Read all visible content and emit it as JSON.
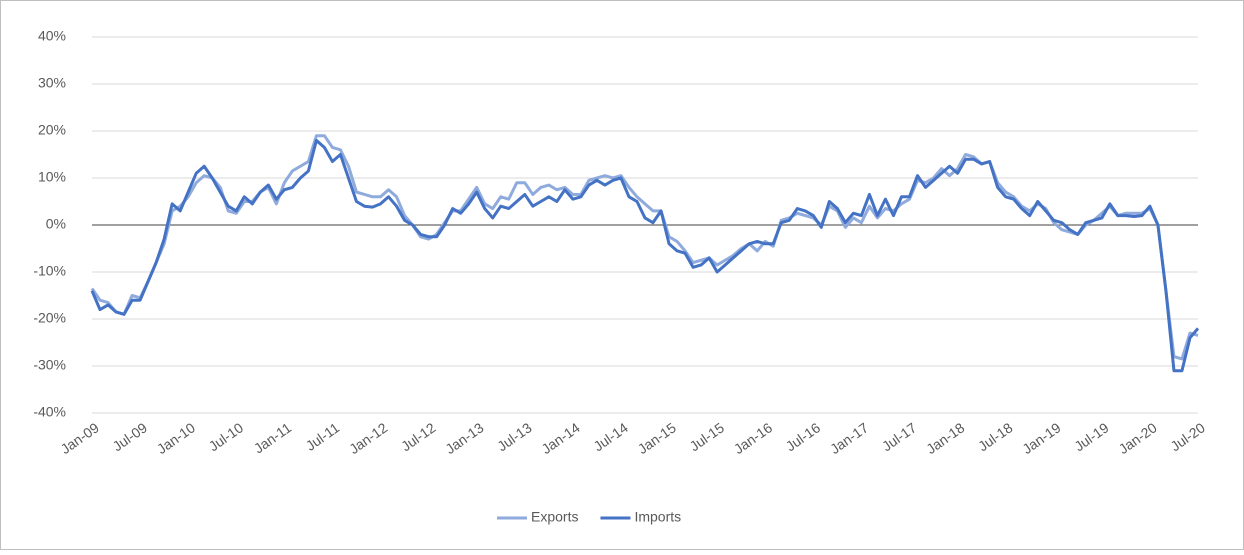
{
  "chart_data": {
    "type": "line",
    "categories": [
      "Jan-09",
      null,
      null,
      null,
      null,
      null,
      "Jul-09",
      null,
      null,
      null,
      null,
      null,
      "Jan-10",
      null,
      null,
      null,
      null,
      null,
      "Jul-10",
      null,
      null,
      null,
      null,
      null,
      "Jan-11",
      null,
      null,
      null,
      null,
      null,
      "Jul-11",
      null,
      null,
      null,
      null,
      null,
      "Jan-12",
      null,
      null,
      null,
      null,
      null,
      "Jul-12",
      null,
      null,
      null,
      null,
      null,
      "Jan-13",
      null,
      null,
      null,
      null,
      null,
      "Jul-13",
      null,
      null,
      null,
      null,
      null,
      "Jan-14",
      null,
      null,
      null,
      null,
      null,
      "Jul-14",
      null,
      null,
      null,
      null,
      null,
      "Jan-15",
      null,
      null,
      null,
      null,
      null,
      "Jul-15",
      null,
      null,
      null,
      null,
      null,
      "Jan-16",
      null,
      null,
      null,
      null,
      null,
      "Jul-16",
      null,
      null,
      null,
      null,
      null,
      "Jan-17",
      null,
      null,
      null,
      null,
      null,
      "Jul-17",
      null,
      null,
      null,
      null,
      null,
      "Jan-18",
      null,
      null,
      null,
      null,
      null,
      "Jul-18",
      null,
      null,
      null,
      null,
      null,
      "Jan-19",
      null,
      null,
      null,
      null,
      null,
      "Jul-19",
      null,
      null,
      null,
      null,
      null,
      "Jan-20",
      null,
      null,
      null,
      null,
      null,
      "Jul-20"
    ],
    "series": [
      {
        "name": "Exports",
        "color": "#8faadc",
        "values": [
          -13.5,
          -16,
          -16.5,
          -18.5,
          -19,
          -15,
          -15.5,
          -12,
          -8,
          -4,
          3,
          4,
          6,
          9,
          10.5,
          10,
          8,
          3,
          2.5,
          5,
          5,
          7,
          8,
          4.5,
          9,
          11.5,
          12.5,
          13.5,
          19,
          19,
          16.5,
          16,
          12.5,
          7,
          6.5,
          6,
          6,
          7.5,
          6,
          2,
          0,
          -2.5,
          -3,
          -2,
          0.5,
          3,
          3,
          5.5,
          8,
          4.5,
          3.5,
          6,
          5.5,
          9,
          9,
          6.5,
          8,
          8.5,
          7.5,
          8,
          6.5,
          6.5,
          9.5,
          10,
          10.5,
          10,
          10.5,
          8,
          6,
          4.5,
          3,
          3,
          -2.5,
          -3.5,
          -5.5,
          -8,
          -7.5,
          -7,
          -8.5,
          -7.5,
          -6.5,
          -5,
          -4,
          -5.5,
          -3.5,
          -4.5,
          1,
          1.5,
          2.5,
          2,
          1.5,
          0,
          4,
          3,
          -0.5,
          1.5,
          0.5,
          4,
          1.5,
          3.5,
          3,
          4.5,
          5.5,
          9.5,
          9,
          10,
          12,
          10.5,
          12,
          15,
          14.5,
          13,
          13.5,
          9,
          7,
          6,
          4,
          3,
          4.5,
          3.5,
          0.5,
          -1,
          -1.5,
          -2,
          0,
          1,
          2.5,
          4,
          2,
          2.5,
          2.5,
          2.5,
          3.5,
          0,
          -14,
          -28,
          -28.5,
          -23,
          -23.5
        ]
      },
      {
        "name": "Imports",
        "color": "#4472c4",
        "values": [
          -14,
          -18,
          -17,
          -18.5,
          -19,
          -16,
          -16,
          -12,
          -8,
          -3,
          4.5,
          3,
          7,
          11,
          12.5,
          10,
          7,
          4,
          3,
          6,
          4.5,
          7,
          8.5,
          5.5,
          7.5,
          8,
          10,
          11.5,
          18,
          16.5,
          13.5,
          15,
          10,
          5,
          4,
          3.8,
          4.5,
          6,
          4,
          1,
          0,
          -2,
          -2.5,
          -2.5,
          0,
          3.5,
          2.5,
          4.5,
          7,
          3.5,
          1.5,
          4,
          3.5,
          5,
          6.5,
          4,
          5,
          6,
          5,
          7.5,
          5.5,
          6,
          8.5,
          9.5,
          8.5,
          9.5,
          10,
          6,
          5,
          1.5,
          0.5,
          3,
          -4,
          -5.5,
          -6,
          -9,
          -8.5,
          -7,
          -10,
          -8.5,
          -7,
          -5.5,
          -4,
          -3.5,
          -4,
          -4,
          0.5,
          1,
          3.5,
          3,
          2,
          -0.5,
          5,
          3.5,
          0.5,
          2.5,
          2,
          6.5,
          2,
          5.5,
          2,
          6,
          6,
          10.5,
          8,
          9.5,
          11,
          12.5,
          11,
          14,
          14,
          13,
          13.5,
          8,
          6,
          5.5,
          3.5,
          2,
          5,
          3,
          1,
          0.5,
          -1,
          -2,
          0.5,
          1,
          1.5,
          4.5,
          2,
          2,
          1.8,
          2,
          4,
          0,
          -14,
          -31,
          -31,
          -24,
          -22
        ]
      }
    ],
    "ylim": [
      -40,
      40
    ],
    "yticks": [
      {
        "value": -40,
        "label": "-40%"
      },
      {
        "value": -30,
        "label": "-30%"
      },
      {
        "value": -20,
        "label": "-20%"
      },
      {
        "value": -10,
        "label": "-10%"
      },
      {
        "value": 0,
        "label": "0%"
      },
      {
        "value": 10,
        "label": "10%"
      },
      {
        "value": 20,
        "label": "20%"
      },
      {
        "value": 30,
        "label": "30%"
      },
      {
        "value": 40,
        "label": "40%"
      }
    ],
    "grid": true,
    "legend": "bottom"
  }
}
